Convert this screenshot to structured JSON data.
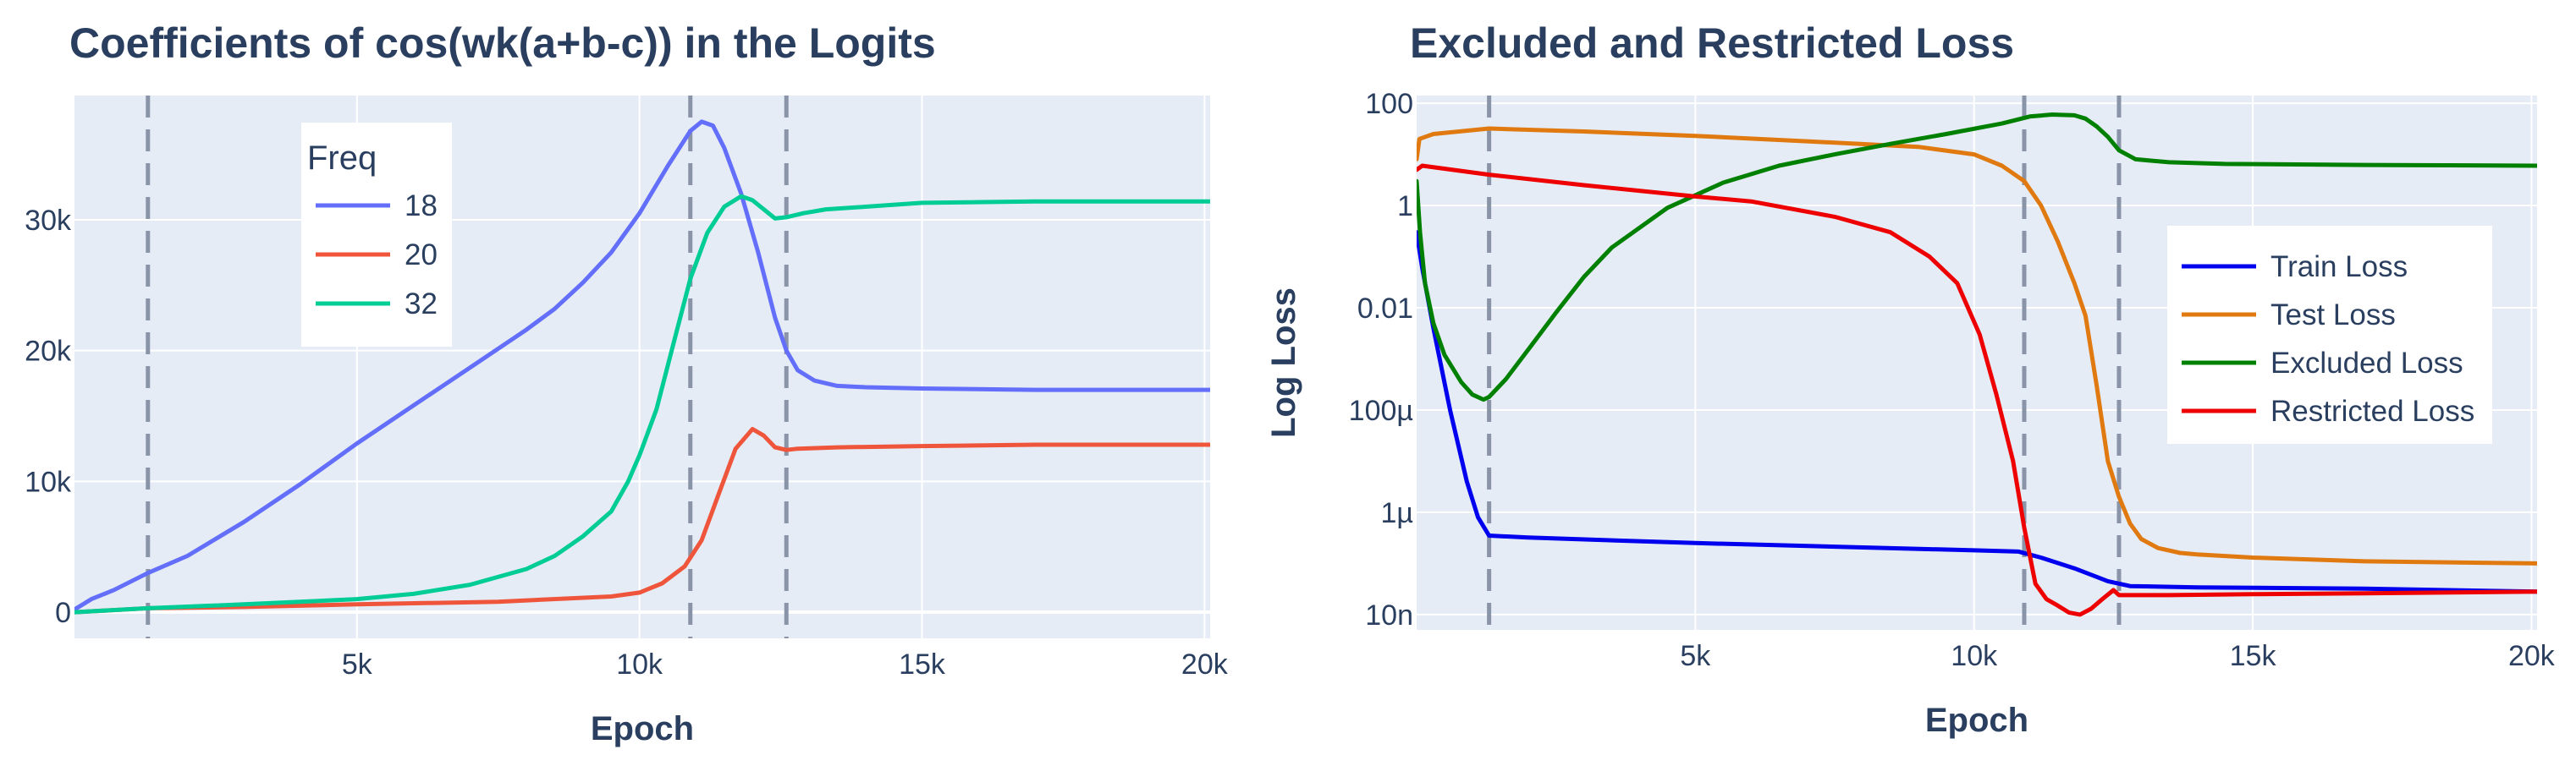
{
  "colors": {
    "plot_bg": "#e5ecf6",
    "grid": "#ffffff",
    "text": "#2a3f5f",
    "vline": "#8a94a8"
  },
  "chart_data": [
    {
      "type": "line",
      "title": "Coefficients of cos(wk(a+b-c)) in the Logits",
      "xlabel": "Epoch",
      "ylabel": "",
      "xlim": [
        0,
        20100
      ],
      "ylim": [
        -2000,
        39500
      ],
      "xticks": [
        5000,
        10000,
        15000,
        20000
      ],
      "xtick_labels": [
        "5k",
        "10k",
        "15k",
        "20k"
      ],
      "yticks": [
        0,
        10000,
        20000,
        30000
      ],
      "ytick_labels": [
        "0",
        "10k",
        "20k",
        "30k"
      ],
      "grid": true,
      "legend_title": "Freq",
      "legend_placement": "top-left",
      "vlines": [
        1300,
        10900,
        12600
      ],
      "series": [
        {
          "name": "18",
          "color": "#636efa",
          "x": [
            0,
            300,
            700,
            1300,
            2000,
            3000,
            4000,
            5000,
            6000,
            7000,
            8000,
            8500,
            9000,
            9500,
            10000,
            10500,
            10900,
            11100,
            11300,
            11500,
            11800,
            12100,
            12400,
            12600,
            12800,
            13100,
            13500,
            14000,
            15000,
            17000,
            20100
          ],
          "y": [
            200,
            1000,
            1700,
            3000,
            4300,
            6900,
            9800,
            12900,
            15800,
            18700,
            21600,
            23200,
            25200,
            27500,
            30500,
            34100,
            36800,
            37500,
            37200,
            35500,
            32000,
            27500,
            22500,
            20000,
            18500,
            17700,
            17300,
            17200,
            17100,
            17000,
            17000
          ]
        },
        {
          "name": "20",
          "color": "#ef553b",
          "x": [
            0,
            1300,
            3000,
            5000,
            7500,
            9500,
            10000,
            10400,
            10800,
            11100,
            11400,
            11700,
            12000,
            12200,
            12400,
            12600,
            12800,
            13500,
            15000,
            17000,
            20100
          ],
          "y": [
            0,
            300,
            400,
            600,
            800,
            1200,
            1500,
            2200,
            3500,
            5500,
            9000,
            12500,
            14000,
            13500,
            12600,
            12400,
            12500,
            12600,
            12700,
            12800,
            12800
          ]
        },
        {
          "name": "32",
          "color": "#00cc96",
          "x": [
            0,
            1300,
            3000,
            5000,
            6000,
            7000,
            8000,
            8500,
            9000,
            9500,
            9800,
            10000,
            10300,
            10600,
            10900,
            11200,
            11500,
            11800,
            12000,
            12200,
            12400,
            12600,
            12900,
            13300,
            14000,
            15000,
            17000,
            20100
          ],
          "y": [
            0,
            300,
            600,
            1000,
            1400,
            2100,
            3300,
            4300,
            5800,
            7700,
            10000,
            12000,
            15500,
            20500,
            25500,
            29000,
            31000,
            31800,
            31500,
            30800,
            30100,
            30200,
            30500,
            30800,
            31000,
            31300,
            31400,
            31400
          ]
        }
      ]
    },
    {
      "type": "line",
      "title": "Excluded and Restricted Loss",
      "xlabel": "Epoch",
      "ylabel": "Log Loss",
      "yscale": "log",
      "xlim": [
        0,
        20100
      ],
      "ylim_log10": [
        -8.3,
        2.15
      ],
      "xticks": [
        5000,
        10000,
        15000,
        20000
      ],
      "xtick_labels": [
        "5k",
        "10k",
        "15k",
        "20k"
      ],
      "yticks": [
        100,
        1,
        0.01,
        0.0001,
        1e-06,
        1e-08
      ],
      "ytick_labels": [
        "100",
        "1",
        "0.01",
        "100µ",
        "1µ",
        "10n"
      ],
      "grid": true,
      "legend_placement": "right",
      "vlines": [
        1300,
        10900,
        12600
      ],
      "series": [
        {
          "name": "Train Loss",
          "color": "#0000ee",
          "x": [
            0,
            100,
            300,
            600,
            900,
            1100,
            1300,
            2000,
            5000,
            10000,
            10800,
            11200,
            11800,
            12400,
            12800,
            14000,
            17000,
            20100
          ],
          "y": [
            0.3,
            0.06,
            0.004,
            0.0001,
            4e-06,
            8e-07,
            3.5e-07,
            3.2e-07,
            2.5e-07,
            1.8e-07,
            1.7e-07,
            1.3e-07,
            8e-08,
            4.5e-08,
            3.6e-08,
            3.4e-08,
            3.2e-08,
            2.8e-08
          ]
        },
        {
          "name": "Test Loss",
          "color": "#e07a10",
          "x": [
            0,
            50,
            300,
            1300,
            3000,
            5000,
            7000,
            9000,
            10000,
            10500,
            10900,
            11200,
            11500,
            11800,
            12000,
            12200,
            12400,
            12600,
            12800,
            13000,
            13300,
            13700,
            14000,
            15000,
            17000,
            20100
          ],
          "y": [
            8,
            20,
            25,
            32,
            28,
            23,
            18,
            14,
            10,
            6,
            3,
            1,
            0.2,
            0.03,
            0.007,
            0.0003,
            1e-05,
            2e-06,
            6e-07,
            3e-07,
            2e-07,
            1.6e-07,
            1.5e-07,
            1.3e-07,
            1.1e-07,
            1e-07
          ]
        },
        {
          "name": "Excluded Loss",
          "color": "#008000",
          "x": [
            0,
            60,
            150,
            300,
            500,
            800,
            1000,
            1200,
            1300,
            1600,
            2000,
            2500,
            3000,
            3500,
            4500,
            5500,
            6500,
            7500,
            8500,
            9500,
            10500,
            11000,
            11400,
            11800,
            12000,
            12200,
            12400,
            12600,
            12900,
            13500,
            14500,
            17000,
            20100
          ],
          "y": [
            3,
            0.3,
            0.03,
            0.005,
            0.0012,
            0.00035,
            0.0002,
            0.00016,
            0.00018,
            0.0004,
            0.0015,
            0.008,
            0.04,
            0.15,
            0.9,
            2.8,
            6,
            10,
            16,
            25,
            40,
            55,
            60,
            58,
            50,
            35,
            22,
            12,
            8,
            7,
            6.5,
            6.2,
            6
          ]
        },
        {
          "name": "Restricted Loss",
          "color": "#ee0000",
          "x": [
            0,
            100,
            1300,
            3000,
            5000,
            6000,
            7500,
            8500,
            9200,
            9700,
            10100,
            10400,
            10700,
            10900,
            11100,
            11300,
            11500,
            11700,
            11900,
            12100,
            12300,
            12500,
            12600,
            12800,
            13500,
            15000,
            17000,
            20100
          ],
          "y": [
            5,
            6,
            4,
            2.5,
            1.5,
            1.2,
            0.6,
            0.3,
            0.1,
            0.03,
            0.003,
            0.0002,
            1e-05,
            5e-07,
            4e-08,
            2e-08,
            1.5e-08,
            1.1e-08,
            1e-08,
            1.3e-08,
            2e-08,
            3e-08,
            2.4e-08,
            2.4e-08,
            2.4e-08,
            2.5e-08,
            2.6e-08,
            2.8e-08
          ]
        }
      ]
    }
  ]
}
